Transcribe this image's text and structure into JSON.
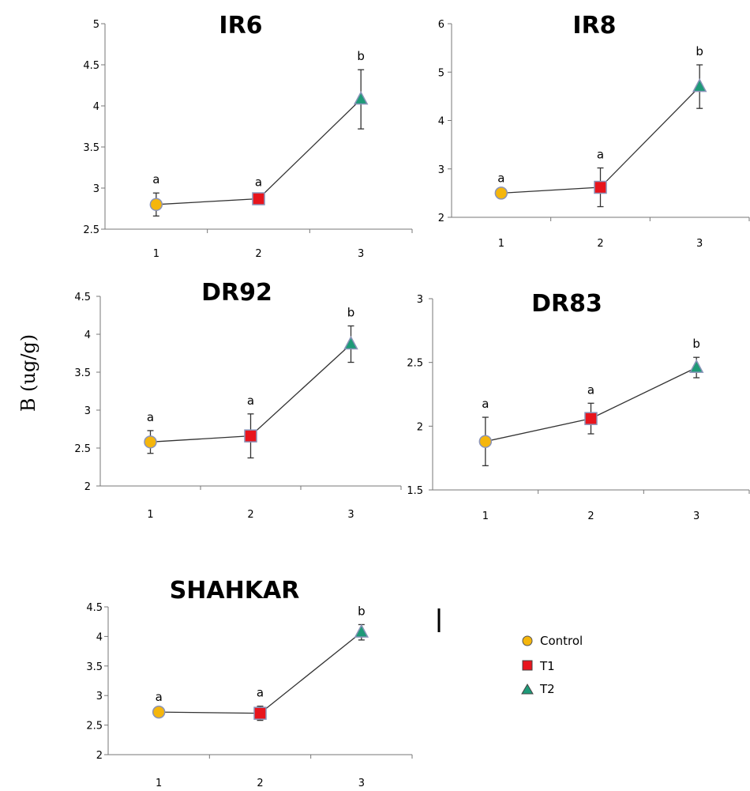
{
  "y_label": "B (ug/g)",
  "legend": {
    "entries": [
      {
        "label": "Control",
        "marker": "circle",
        "color": "#F5B60C"
      },
      {
        "label": "T1",
        "marker": "square",
        "color": "#E8141C"
      },
      {
        "label": "T2",
        "marker": "triangle",
        "color": "#1E9A78"
      }
    ]
  },
  "chart_data": [
    {
      "type": "line",
      "title": "IR6",
      "x": [
        1,
        2,
        3
      ],
      "values": [
        2.8,
        2.87,
        4.08
      ],
      "errors": [
        0.14,
        0.04,
        0.36
      ],
      "letters": [
        "a",
        "a",
        "b"
      ],
      "ylim": [
        2.5,
        5
      ],
      "yticks": [
        "2.5",
        "3",
        "3.5",
        "4",
        "4.5",
        "5"
      ],
      "yticks_values": [
        2.5,
        3,
        3.5,
        4,
        4.5,
        5
      ],
      "xticks": [
        "1",
        "2",
        "3"
      ]
    },
    {
      "type": "line",
      "title": "IR8",
      "x": [
        1,
        2,
        3
      ],
      "values": [
        2.5,
        2.62,
        4.7
      ],
      "errors": [
        0.03,
        0.4,
        0.45
      ],
      "letters": [
        "a",
        "a",
        "b"
      ],
      "ylim": [
        2,
        6
      ],
      "yticks": [
        "2",
        "3",
        "4",
        "5",
        "6"
      ],
      "yticks_values": [
        2,
        3,
        4,
        5,
        6
      ],
      "xticks": [
        "1",
        "2",
        "3"
      ]
    },
    {
      "type": "line",
      "title": "DR92",
      "x": [
        1,
        2,
        3
      ],
      "values": [
        2.58,
        2.66,
        3.87
      ],
      "errors": [
        0.15,
        0.29,
        0.24
      ],
      "letters": [
        "a",
        "a",
        "b"
      ],
      "ylim": [
        2,
        4.5
      ],
      "yticks": [
        "2",
        "2.5",
        "3",
        "3.5",
        "4",
        "4.5"
      ],
      "yticks_values": [
        2,
        2.5,
        3,
        3.5,
        4,
        4.5
      ],
      "xticks": [
        "1",
        "2",
        "3"
      ]
    },
    {
      "type": "line",
      "title": "DR83",
      "x": [
        1,
        2,
        3
      ],
      "values": [
        1.88,
        2.06,
        2.46
      ],
      "errors": [
        0.19,
        0.12,
        0.08
      ],
      "letters": [
        "a",
        "a",
        "b"
      ],
      "ylim": [
        1.5,
        3
      ],
      "yticks": [
        "1.5",
        "2",
        "2.5",
        "3"
      ],
      "yticks_values": [
        1.5,
        2,
        2.5,
        3
      ],
      "xticks": [
        "1",
        "2",
        "3"
      ]
    },
    {
      "type": "line",
      "title": "SHAHKAR",
      "x": [
        1,
        2,
        3
      ],
      "values": [
        2.72,
        2.7,
        4.07
      ],
      "errors": [
        0.03,
        0.12,
        0.13
      ],
      "letters": [
        "a",
        "a",
        "b"
      ],
      "ylim": [
        2,
        4.5
      ],
      "yticks": [
        "2",
        "2.5",
        "3",
        "3.5",
        "4",
        "4.5"
      ],
      "yticks_values": [
        2,
        2.5,
        3,
        3.5,
        4,
        4.5
      ],
      "xticks": [
        "1",
        "2",
        "3"
      ]
    }
  ]
}
